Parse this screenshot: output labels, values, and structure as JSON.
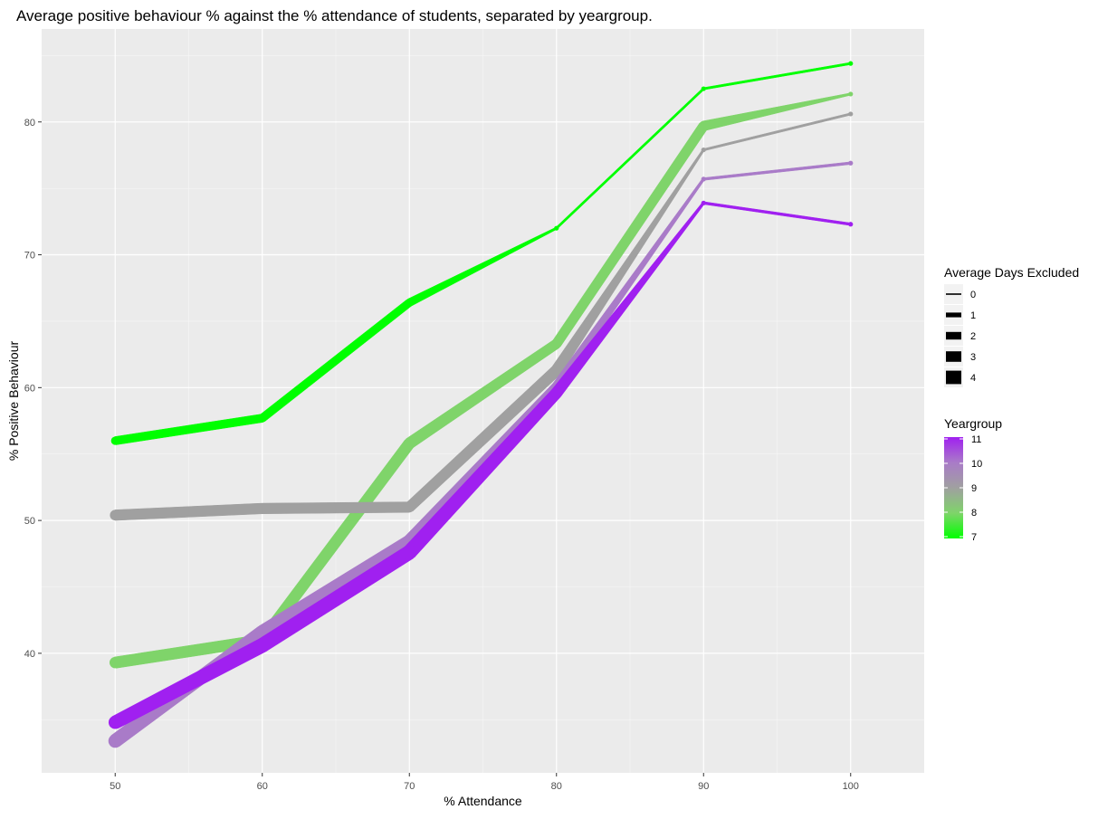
{
  "chart_data": {
    "type": "line",
    "title": "Average positive behaviour % against the % attendance of students, separated by yeargroup.",
    "xlabel": "% Attendance",
    "ylabel": "% Positive Behaviour",
    "xlim": [
      45,
      105
    ],
    "ylim": [
      31,
      87
    ],
    "x_ticks": [
      50,
      60,
      70,
      80,
      90,
      100
    ],
    "y_ticks": [
      40,
      50,
      60,
      70,
      80
    ],
    "grid": true,
    "background": "#ebebeb",
    "legend_position": "right",
    "size_legend": {
      "title": "Average Days Excluded",
      "entries": [
        "0",
        "1",
        "2",
        "3",
        "4"
      ]
    },
    "color_legend": {
      "title": "Yeargroup",
      "entries": [
        "11",
        "10",
        "9",
        "8",
        "7"
      ],
      "colors": [
        "#a020f0",
        "#a97bc8",
        "#a0a0a0",
        "#7fd46a",
        "#00ff00"
      ]
    },
    "series": [
      {
        "yeargroup": 7,
        "color": "#00ff00",
        "x": [
          50,
          60,
          70,
          80,
          90,
          100
        ],
        "y": [
          56.0,
          57.7,
          66.4,
          72.0,
          82.5,
          84.4
        ],
        "days_excluded": [
          1.8,
          1.8,
          1.7,
          0.2,
          0.2,
          0.2
        ]
      },
      {
        "yeargroup": 8,
        "color": "#7fd46a",
        "x": [
          50,
          60,
          70,
          80,
          90,
          100
        ],
        "y": [
          39.3,
          41.0,
          55.8,
          63.3,
          79.7,
          82.1
        ],
        "days_excluded": [
          2.6,
          2.6,
          2.6,
          2.2,
          2.2,
          0.2
        ]
      },
      {
        "yeargroup": 9,
        "color": "#a0a0a0",
        "x": [
          50,
          60,
          70,
          80,
          90,
          100
        ],
        "y": [
          50.4,
          50.9,
          51.0,
          61.3,
          77.9,
          80.6
        ],
        "days_excluded": [
          2.4,
          2.4,
          2.4,
          2.6,
          0.2,
          0.2
        ]
      },
      {
        "yeargroup": 10,
        "color": "#a97bc8",
        "x": [
          50,
          60,
          70,
          80,
          90,
          100
        ],
        "y": [
          33.4,
          41.6,
          48.4,
          60.1,
          75.7,
          76.9
        ],
        "days_excluded": [
          3.2,
          3.2,
          3.2,
          2.0,
          0.3,
          0.3
        ]
      },
      {
        "yeargroup": 11,
        "color": "#a020f0",
        "x": [
          50,
          60,
          70,
          80,
          90,
          100
        ],
        "y": [
          34.8,
          40.6,
          47.6,
          59.6,
          73.9,
          72.3
        ],
        "days_excluded": [
          3.1,
          3.4,
          3.4,
          2.6,
          0.3,
          0.3
        ]
      }
    ]
  }
}
